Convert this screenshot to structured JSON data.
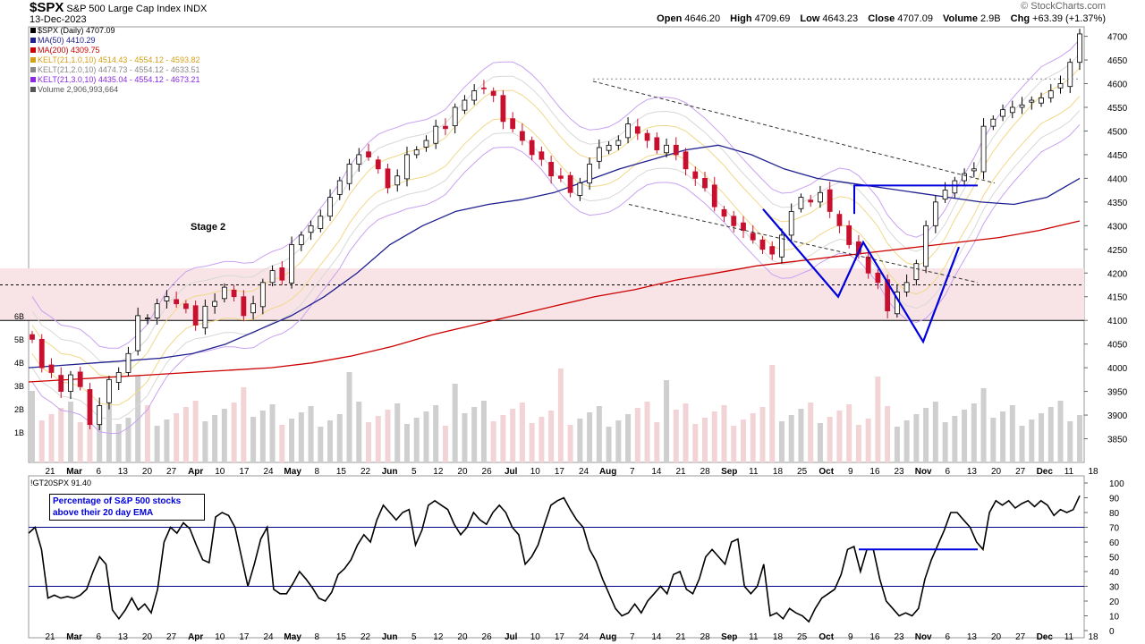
{
  "header": {
    "symbol": "$SPX",
    "title": "S&P 500 Large Cap Index INDX",
    "date": "13-Dec-2023",
    "watermark": "© StockCharts.com",
    "open_label": "Open",
    "open": "4646.20",
    "high_label": "High",
    "high": "4709.69",
    "low_label": "Low",
    "low": "4643.23",
    "close_label": "Close",
    "close": "4707.09",
    "volume_label": "Volume",
    "volume": "2.9B",
    "chg_label": "Chg",
    "chg": "+63.39 (+1.37%)"
  },
  "legend": [
    {
      "text": "$SPX (Daily) 4707.09",
      "color": "#000000"
    },
    {
      "text": "MA(50) 4410.29",
      "color": "#1f1f8f"
    },
    {
      "text": "MA(200) 4309.75",
      "color": "#cc0000"
    },
    {
      "text": "KELT(21,1.0,10) 4514.43 - 4554.12 - 4593.82",
      "color": "#d4a017"
    },
    {
      "text": "KELT(21,2.0,10) 4474.73 - 4554.12 - 4633.51",
      "color": "#888888"
    },
    {
      "text": "KELT(21,3.0,10) 4435.04 - 4554.12 - 4673.21",
      "color": "#8a2be2"
    },
    {
      "text": "Volume 2,906,993,664",
      "color": "#555555"
    }
  ],
  "annotations": {
    "stage": "Stage 2",
    "indicator_legend": "!GT20SPX 91.40",
    "indicator_note_line1": "Percentage of S&P 500 stocks",
    "indicator_note_line2": "above their 20 day EMA"
  },
  "colors": {
    "up": "#000000",
    "down": "#c8102e",
    "ma50": "#1f1f8f",
    "ma200": "#cc0000",
    "annotation": "#0000dd",
    "zone": "#f8e4e6"
  },
  "chart_data": [
    {
      "type": "candlestick",
      "title": "$SPX S&P 500 Large Cap Index INDX",
      "x_ticks": [
        "21",
        "Mar",
        "6",
        "13",
        "20",
        "27",
        "Apr",
        "10",
        "17",
        "24",
        "May",
        "8",
        "15",
        "22",
        "Jun",
        "5",
        "12",
        "20",
        "26",
        "Jul",
        "10",
        "17",
        "24",
        "Aug",
        "7",
        "14",
        "21",
        "28",
        "Sep",
        "11",
        "18",
        "25",
        "Oct",
        "9",
        "16",
        "23",
        "Nov",
        "6",
        "13",
        "20",
        "27",
        "Dec",
        "11",
        "18"
      ],
      "y_ticks": [
        3850,
        3900,
        3950,
        4000,
        4050,
        4100,
        4150,
        4200,
        4250,
        4300,
        4350,
        4400,
        4450,
        4500,
        4550,
        4600,
        4650,
        4700
      ],
      "ylim": [
        3800,
        4720
      ],
      "volume_ticks": [
        "1B",
        "2B",
        "3B",
        "4B",
        "5B",
        "6B"
      ],
      "last": {
        "open": 4646.2,
        "high": 4709.69,
        "low": 4643.23,
        "close": 4707.09
      },
      "close_path": [
        4060,
        4000,
        3990,
        3950,
        3985,
        3960,
        3880,
        3920,
        3975,
        3990,
        4030,
        4110,
        4105,
        4135,
        4150,
        4135,
        4125,
        4090,
        4130,
        4140,
        4170,
        4150,
        4110,
        4135,
        4180,
        4205,
        4185,
        4260,
        4280,
        4300,
        4320,
        4360,
        4395,
        4430,
        4450,
        4445,
        4420,
        4380,
        4405,
        4450,
        4460,
        4480,
        4510,
        4505,
        4550,
        4565,
        4585,
        4590,
        4575,
        4520,
        4505,
        4480,
        4450,
        4440,
        4405,
        4400,
        4370,
        4390,
        4430,
        4465,
        4470,
        4480,
        4515,
        4495,
        4480,
        4460,
        4470,
        4450,
        4420,
        4400,
        4380,
        4340,
        4320,
        4300,
        4290,
        4270,
        4250,
        4240,
        4280,
        4330,
        4360,
        4350,
        4370,
        4330,
        4300,
        4260,
        4240,
        4200,
        4180,
        4120,
        4160,
        4180,
        4220,
        4300,
        4350,
        4375,
        4395,
        4410,
        4420,
        4510,
        4525,
        4545,
        4550,
        4555,
        4565,
        4570,
        4585,
        4600,
        4645,
        4705
      ],
      "ma50": [
        4000,
        4005,
        4010,
        4015,
        4020,
        4030,
        4050,
        4080,
        4110,
        4150,
        4200,
        4260,
        4300,
        4330,
        4345,
        4355,
        4370,
        4395,
        4420,
        4440,
        4460,
        4470,
        4450,
        4420,
        4400,
        4390,
        4380,
        4370,
        4360,
        4350,
        4345,
        4360,
        4400
      ],
      "ma200": [
        3970,
        3975,
        3980,
        3985,
        3990,
        3995,
        4000,
        4010,
        4025,
        4045,
        4070,
        4090,
        4110,
        4130,
        4150,
        4165,
        4185,
        4200,
        4215,
        4225,
        4235,
        4245,
        4255,
        4265,
        4275,
        4290,
        4310
      ],
      "horizontal_lines": [
        4100,
        4175
      ],
      "pattern_levels": [
        4385,
        4610
      ]
    },
    {
      "type": "line",
      "title": "!GT20SPX",
      "series": [
        {
          "name": "!GT20SPX",
          "values": [
            66,
            70,
            55,
            22,
            24,
            22,
            23,
            22,
            24,
            28,
            40,
            50,
            45,
            14,
            8,
            14,
            22,
            14,
            18,
            12,
            28,
            60,
            70,
            66,
            73,
            69,
            58,
            48,
            46,
            77,
            80,
            78,
            70,
            50,
            30,
            45,
            62,
            70,
            28,
            25,
            25,
            32,
            40,
            35,
            29,
            22,
            20,
            26,
            38,
            42,
            48,
            58,
            65,
            60,
            75,
            85,
            80,
            75,
            80,
            82,
            58,
            68,
            85,
            88,
            85,
            82,
            72,
            65,
            70,
            80,
            75,
            72,
            80,
            85,
            80,
            70,
            65,
            45,
            50,
            58,
            72,
            85,
            88,
            90,
            82,
            75,
            70,
            55,
            47,
            35,
            25,
            15,
            10,
            12,
            18,
            12,
            20,
            25,
            30,
            25,
            38,
            40,
            28,
            25,
            35,
            50,
            55,
            50,
            45,
            60,
            62,
            30,
            25,
            30,
            45,
            10,
            12,
            8,
            15,
            12,
            10,
            6,
            15,
            22,
            25,
            28,
            38,
            55,
            57,
            40,
            55,
            55,
            35,
            20,
            15,
            10,
            12,
            10,
            15,
            35,
            48,
            58,
            68,
            80,
            80,
            75,
            70,
            60,
            55,
            80,
            88,
            85,
            88,
            83,
            86,
            88,
            84,
            88,
            85,
            78,
            82,
            80,
            82,
            91.4
          ]
        }
      ],
      "y_ticks": [
        0,
        10,
        20,
        30,
        40,
        50,
        60,
        70,
        80,
        90,
        100
      ],
      "ylim": [
        0,
        100
      ],
      "horizontal_lines": [
        30,
        70
      ],
      "pattern_level": 55
    }
  ]
}
